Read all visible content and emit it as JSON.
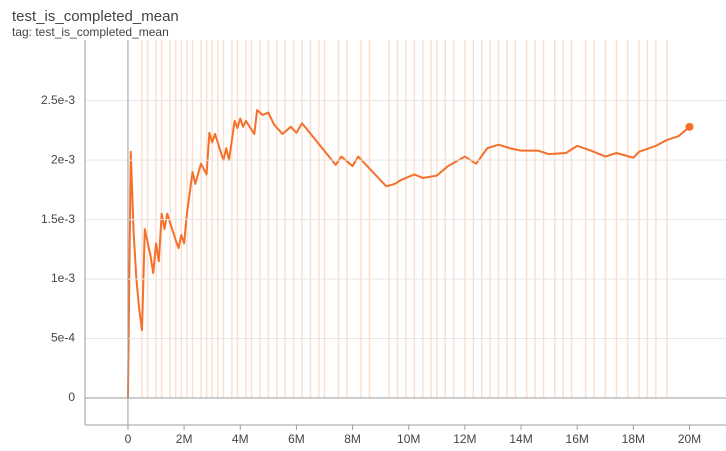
{
  "chart_data": {
    "type": "line",
    "title": "test_is_completed_mean",
    "subtitle": "tag: test_is_completed_mean",
    "xlim": [
      -1530000,
      21300000
    ],
    "ylim": [
      -0.000227,
      0.00301
    ],
    "xticks": [
      0,
      {
        "value": 2000000,
        "label": "2M"
      },
      {
        "value": 4000000,
        "label": "4M"
      },
      {
        "value": 6000000,
        "label": "6M"
      },
      {
        "value": 8000000,
        "label": "8M"
      },
      {
        "value": 10000000,
        "label": "10M"
      },
      {
        "value": 12000000,
        "label": "12M"
      },
      {
        "value": 14000000,
        "label": "14M"
      },
      {
        "value": 16000000,
        "label": "16M"
      },
      {
        "value": 18000000,
        "label": "18M"
      },
      {
        "value": 20000000,
        "label": "20M"
      }
    ],
    "yticks": [
      0,
      {
        "value": 0.0005,
        "label": "5e-4"
      },
      {
        "value": 0.001,
        "label": "1e-3"
      },
      {
        "value": 0.0015,
        "label": "1.5e-3"
      },
      {
        "value": 0.002,
        "label": "2e-3"
      },
      {
        "value": 0.0025,
        "label": "2.5e-3"
      }
    ],
    "grid": true,
    "series": [
      {
        "color": "#fbd9c4",
        "x": [
          500000,
          700000,
          1000000,
          1200000,
          1500000,
          1700000,
          1900000,
          2100000,
          2300000,
          2600000,
          2800000,
          3000000,
          3200000,
          3400000,
          3700000,
          3900000,
          4200000,
          4400000,
          4700000,
          5000000,
          5300000,
          5600000,
          5900000,
          6200000,
          6500000,
          6800000,
          7000000,
          7500000,
          7800000,
          8300000,
          8600000,
          9300000,
          9600000,
          9900000,
          10200000,
          10500000,
          10800000,
          11000000,
          11300000,
          11600000,
          12000000,
          12300000,
          12600000,
          12900000,
          13200000,
          13500000,
          13800000,
          14200000,
          14500000,
          14800000,
          15200000,
          15500000,
          15800000,
          16300000,
          16600000,
          17000000,
          17400000,
          17800000,
          18200000,
          18500000,
          18800000,
          19200000
        ],
        "values": [
          0.01,
          0.01,
          0.01,
          0.01,
          0.01,
          0.01,
          0.01,
          0.01,
          0.01,
          0.01,
          0.01,
          0.01,
          0.01,
          0.01,
          0.01,
          0.01,
          0.01,
          0.01,
          0.01,
          0.01,
          0.01,
          0.01,
          0.01,
          0.01,
          0.01,
          0.01,
          0.01,
          0.01,
          0.01,
          0.01,
          0.01,
          0.01,
          0.01,
          0.01,
          0.01,
          0.01,
          0.01,
          0.01,
          0.01,
          0.01,
          0.01,
          0.01,
          0.01,
          0.01,
          0.01,
          0.01,
          0.01,
          0.01,
          0.01,
          0.01,
          0.01,
          0.01,
          0.01,
          0.01,
          0.01,
          0.01,
          0.01,
          0.01,
          0.01,
          0.01,
          0.01,
          0.01
        ]
      },
      {
        "color": "#f5702a",
        "x": [
          0,
          100000,
          200000,
          300000,
          400000,
          500000,
          600000,
          800000,
          900000,
          1000000,
          1100000,
          1200000,
          1300000,
          1400000,
          1600000,
          1800000,
          1900000,
          2000000,
          2100000,
          2300000,
          2400000,
          2600000,
          2800000,
          2900000,
          3000000,
          3100000,
          3400000,
          3500000,
          3600000,
          3800000,
          3900000,
          4000000,
          4100000,
          4200000,
          4500000,
          4600000,
          4800000,
          5000000,
          5200000,
          5500000,
          5800000,
          6000000,
          6200000,
          7400000,
          7600000,
          8000000,
          8200000,
          9200000,
          9500000,
          9700000,
          10200000,
          10500000,
          11000000,
          11400000,
          12000000,
          12400000,
          12800000,
          13200000,
          13600000,
          14000000,
          14600000,
          15000000,
          15600000,
          16000000,
          16600000,
          17000000,
          17400000,
          18000000,
          18200000,
          18800000,
          19200000,
          19600000,
          20000000
        ],
        "values": [
          0,
          0.00207,
          0.0014,
          0.001,
          0.00075,
          0.00057,
          0.00142,
          0.0012,
          0.00105,
          0.0013,
          0.00115,
          0.00155,
          0.00142,
          0.00155,
          0.0014,
          0.00126,
          0.00137,
          0.0013,
          0.00155,
          0.0019,
          0.0018,
          0.00197,
          0.00188,
          0.00223,
          0.00215,
          0.00222,
          0.002,
          0.0021,
          0.002,
          0.00233,
          0.00227,
          0.00235,
          0.00228,
          0.00233,
          0.00222,
          0.00242,
          0.00238,
          0.0024,
          0.0023,
          0.00222,
          0.00228,
          0.00223,
          0.00231,
          0.00196,
          0.00203,
          0.00195,
          0.00203,
          0.00178,
          0.0018,
          0.00183,
          0.00188,
          0.00185,
          0.00187,
          0.00195,
          0.00203,
          0.00197,
          0.0021,
          0.00213,
          0.0021,
          0.00208,
          0.00208,
          0.00205,
          0.00206,
          0.00212,
          0.00207,
          0.00203,
          0.00206,
          0.00202,
          0.00207,
          0.00212,
          0.00217,
          0.0022,
          0.00228
        ]
      }
    ]
  }
}
